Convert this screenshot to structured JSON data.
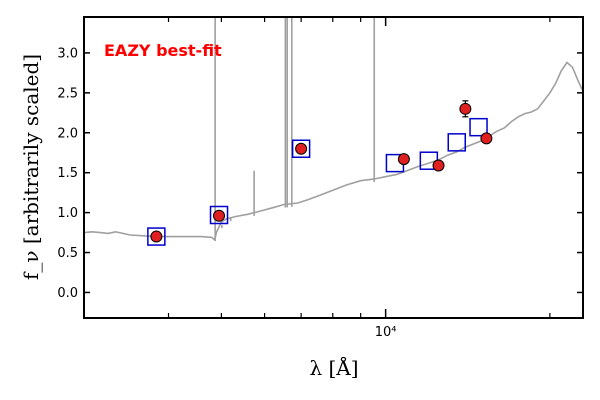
{
  "chart_data": {
    "type": "scatter",
    "title": "",
    "xlabel": "λ [Å]",
    "ylabel": "f_ν [arbitrarily scaled]",
    "x_scale": "log",
    "xlim": [
      2800,
      23000
    ],
    "ylim": [
      -0.32,
      3.45
    ],
    "y_ticks": [
      0.0,
      0.5,
      1.0,
      1.5,
      2.0,
      2.5,
      3.0
    ],
    "y_tick_labels": [
      "0.0",
      "0.5",
      "1.0",
      "1.5",
      "2.0",
      "2.5",
      "3.0"
    ],
    "x_major_tick": 10000,
    "x_major_tick_label": "10⁴",
    "x_minor_ticks": [
      4000,
      5000,
      6000,
      7000,
      8000,
      9000,
      20000
    ],
    "grid": false,
    "annotation": {
      "text": "EAZY best-fit",
      "color": "#ff0000"
    },
    "series": [
      {
        "kind": "model-spectrum",
        "color": "#a0a0a0",
        "points": [
          [
            2800,
            0.75
          ],
          [
            2900,
            0.76
          ],
          [
            3000,
            0.75
          ],
          [
            3100,
            0.74
          ],
          [
            3200,
            0.76
          ],
          [
            3300,
            0.74
          ],
          [
            3400,
            0.72
          ],
          [
            3600,
            0.71
          ],
          [
            3800,
            0.7
          ],
          [
            4000,
            0.7
          ],
          [
            4300,
            0.7
          ],
          [
            4600,
            0.7
          ],
          [
            4800,
            0.69
          ],
          [
            4860,
            0.66
          ],
          [
            4900,
            0.76
          ],
          [
            5000,
            0.88
          ],
          [
            5100,
            0.92
          ],
          [
            5300,
            0.95
          ],
          [
            5600,
            0.98
          ],
          [
            5900,
            1.02
          ],
          [
            6200,
            1.06
          ],
          [
            6500,
            1.1
          ],
          [
            6900,
            1.12
          ],
          [
            7200,
            1.16
          ],
          [
            7600,
            1.22
          ],
          [
            8000,
            1.28
          ],
          [
            8500,
            1.35
          ],
          [
            9000,
            1.4
          ],
          [
            9500,
            1.42
          ],
          [
            10000,
            1.45
          ],
          [
            10500,
            1.48
          ],
          [
            11000,
            1.53
          ],
          [
            11500,
            1.58
          ],
          [
            12000,
            1.62
          ],
          [
            12500,
            1.66
          ],
          [
            13000,
            1.72
          ],
          [
            13500,
            1.76
          ],
          [
            14000,
            1.82
          ],
          [
            14500,
            1.86
          ],
          [
            15000,
            1.9
          ],
          [
            15500,
            1.96
          ],
          [
            16000,
            2.02
          ],
          [
            16500,
            2.06
          ],
          [
            17000,
            2.14
          ],
          [
            17500,
            2.2
          ],
          [
            18000,
            2.24
          ],
          [
            18500,
            2.26
          ],
          [
            19000,
            2.3
          ],
          [
            19500,
            2.4
          ],
          [
            20000,
            2.5
          ],
          [
            20500,
            2.62
          ],
          [
            21000,
            2.78
          ],
          [
            21500,
            2.88
          ],
          [
            22000,
            2.82
          ],
          [
            22500,
            2.66
          ],
          [
            23000,
            2.52
          ]
        ],
        "lines": [
          {
            "x": 4870,
            "peak": 3.45
          },
          {
            "x": 5010,
            "peak": 0.78
          },
          {
            "x": 5200,
            "peak": 0.92
          },
          {
            "x": 5740,
            "peak": 1.5
          },
          {
            "x": 6550,
            "peak": 3.45
          },
          {
            "x": 6600,
            "peak": 3.45
          },
          {
            "x": 6730,
            "peak": 3.45
          },
          {
            "x": 9530,
            "peak": 3.45
          }
        ]
      },
      {
        "kind": "model-photometry",
        "name": "",
        "marker": "open-square",
        "color": "#0000cc",
        "x": [
          3800,
          4950,
          7000,
          10400,
          12000,
          13500,
          14800
        ],
        "y": [
          0.7,
          0.97,
          1.8,
          1.62,
          1.65,
          1.88,
          2.07
        ]
      },
      {
        "kind": "observed-photometry",
        "name": "",
        "marker": "filled-circle",
        "color": "#e02020",
        "x": [
          3800,
          4950,
          7000,
          10800,
          12500,
          14000,
          15300
        ],
        "y": [
          0.7,
          0.96,
          1.8,
          1.67,
          1.59,
          2.3,
          1.93
        ],
        "y_err": [
          0.02,
          0.02,
          0.02,
          0.02,
          0.02,
          0.1,
          0.02
        ]
      }
    ]
  }
}
